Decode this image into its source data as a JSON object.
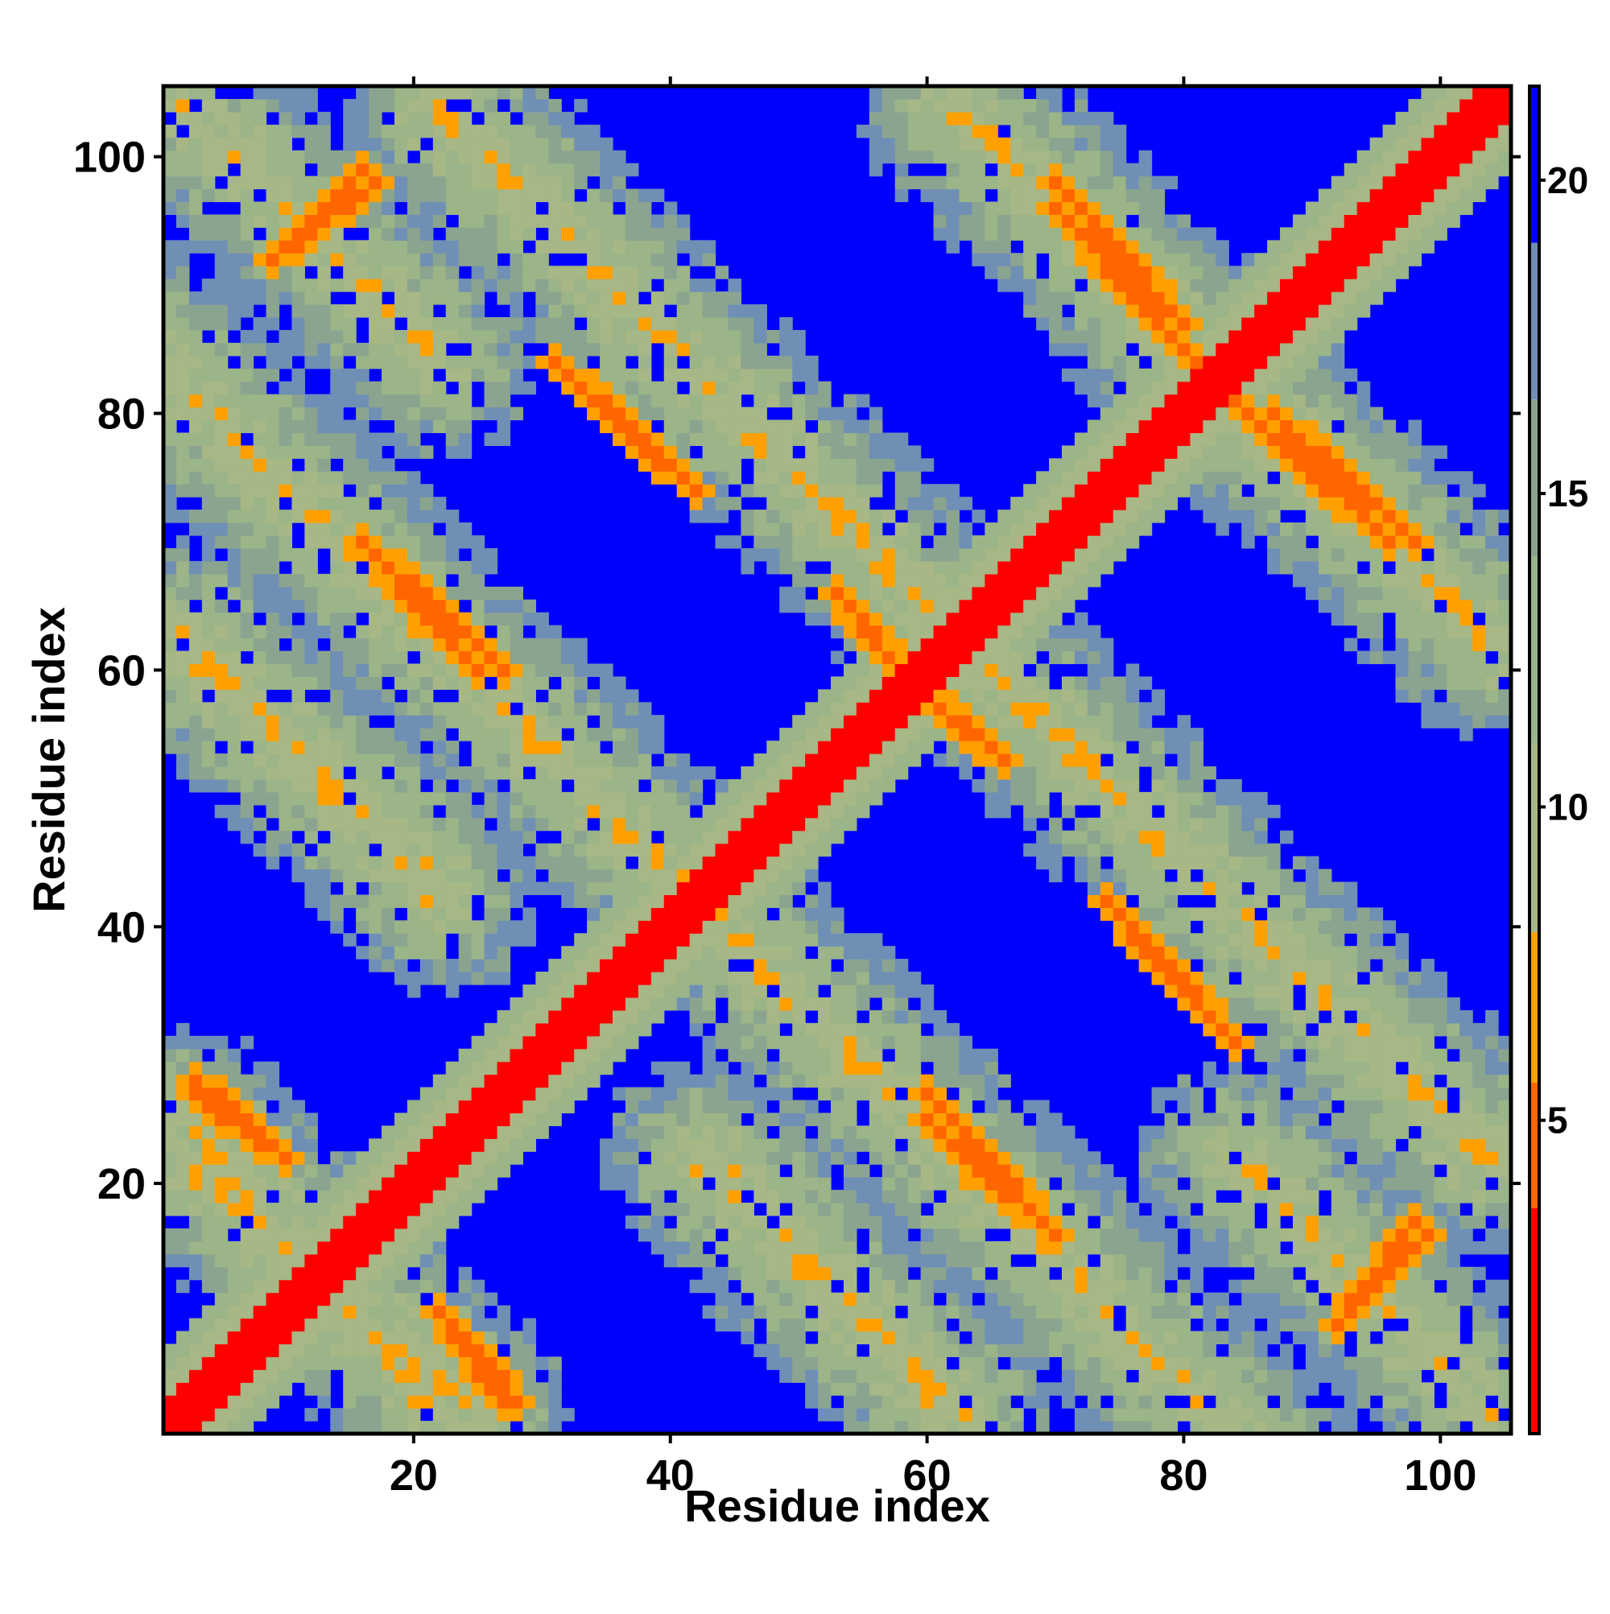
{
  "chart_data": {
    "type": "heatmap",
    "title": "",
    "xlabel": "Residue index",
    "ylabel": "Residue index",
    "xlim": [
      0.5,
      105.5
    ],
    "ylim": [
      0.5,
      105.5
    ],
    "n_residues": 105,
    "xticks": [
      20,
      40,
      60,
      80,
      100
    ],
    "yticks": [
      20,
      40,
      60,
      80,
      100
    ],
    "colorbar": {
      "range": [
        0,
        21.5
      ],
      "ticks": [
        5,
        10,
        15,
        20
      ],
      "bands": [
        {
          "from": 0,
          "to": 3.6,
          "color": "#ff0000"
        },
        {
          "from": 3.6,
          "to": 5.6,
          "color": "#ff6600"
        },
        {
          "from": 5.6,
          "to": 8,
          "color": "#ffa000"
        },
        {
          "from": 8,
          "to": 11,
          "color": "#a7b786"
        },
        {
          "from": 11,
          "to": 14,
          "color": "#9bb488"
        },
        {
          "from": 14,
          "to": 16.5,
          "color": "#8ba48f"
        },
        {
          "from": 16.5,
          "to": 19,
          "color": "#6f8fb5"
        },
        {
          "from": 19,
          "to": 21.5,
          "color": "#0000ff"
        }
      ]
    },
    "background_value": 21.5,
    "background_color": "#0000ff",
    "diagonal_value": 1.5,
    "diagonal_color": "#ff0000",
    "contact_bands": [
      {
        "from": [
          2,
          25
        ],
        "to": [
          22,
          2
        ]
      },
      {
        "from": [
          2,
          63
        ],
        "to": [
          22,
          43
        ]
      },
      {
        "from": [
          2,
          104
        ],
        "to": [
          22,
          84
        ]
      },
      {
        "from": [
          22,
          62
        ],
        "to": [
          42,
          42
        ]
      },
      {
        "from": [
          22,
          103
        ],
        "to": [
          42,
          83
        ]
      },
      {
        "from": [
          42,
          42
        ],
        "to": [
          62,
          22
        ]
      },
      {
        "from": [
          42,
          83
        ],
        "to": [
          62,
          63
        ]
      },
      {
        "from": [
          42,
          22
        ],
        "to": [
          62,
          2
        ]
      },
      {
        "from": [
          62,
          63
        ],
        "to": [
          82,
          43
        ]
      },
      {
        "from": [
          62,
          104
        ],
        "to": [
          82,
          84
        ]
      },
      {
        "from": [
          62,
          22
        ],
        "to": [
          82,
          2
        ]
      },
      {
        "from": [
          82,
          83
        ],
        "to": [
          104,
          62
        ]
      },
      {
        "from": [
          82,
          43
        ],
        "to": [
          104,
          22
        ]
      },
      {
        "from": [
          82,
          2
        ],
        "to": [
          95,
          -11
        ]
      }
    ],
    "close_contacts": [
      {
        "from": [
          3,
          27
        ],
        "to": [
          10,
          22
        ]
      },
      {
        "from": [
          9,
          92
        ],
        "to": [
          17,
          98
        ]
      },
      {
        "from": [
          16,
          70
        ],
        "to": [
          27,
          60
        ]
      },
      {
        "from": [
          24,
          8
        ],
        "to": [
          28,
          3
        ]
      },
      {
        "from": [
          31,
          84
        ],
        "to": [
          42,
          74
        ]
      },
      {
        "from": [
          53,
          66
        ],
        "to": [
          58,
          60
        ]
      },
      {
        "from": [
          60,
          58
        ],
        "to": [
          66,
          53
        ]
      },
      {
        "from": [
          60,
          25
        ],
        "to": [
          69,
          17
        ]
      },
      {
        "from": [
          70,
          98
        ],
        "to": [
          80,
          87
        ]
      },
      {
        "from": [
          74,
          42
        ],
        "to": [
          81,
          34
        ]
      },
      {
        "from": [
          83,
          82
        ],
        "to": [
          96,
          70
        ]
      },
      {
        "from": [
          92,
          9
        ],
        "to": [
          99,
          16
        ]
      }
    ]
  }
}
